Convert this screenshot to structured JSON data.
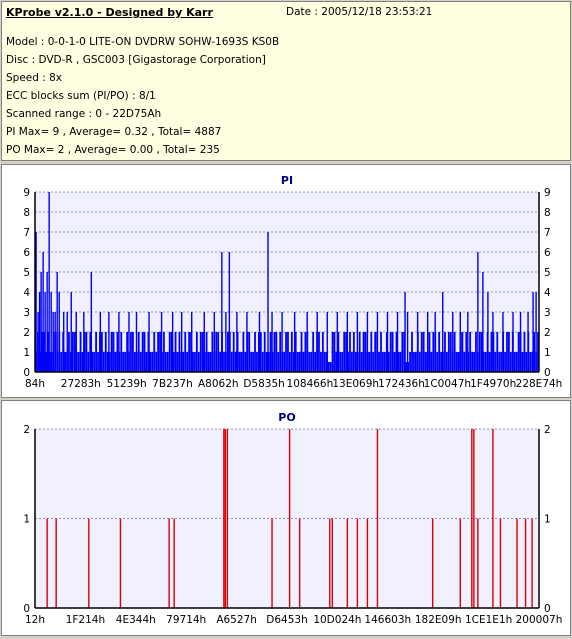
{
  "header": {
    "title": "KProbe v2.1.0 - Designed by Karr",
    "date": "Date : 2005/12/18 23:53:21",
    "lines": [
      "Model : 0-0-1-0 LITE-ON DVDRW SOHW-1693S KS0B",
      "Disc : DVD-R , GSC003 [Gigastorage Corporation]",
      "Speed : 8x",
      "ECC blocks sum (PI/PO) : 8/1",
      "Scanned range : 0 - 22D75Ah",
      "PI Max= 9 , Average= 0.32 , Total= 4887",
      "PO Max= 2 , Average= 0.00 , Total= 235"
    ]
  },
  "colors": {
    "pi": "#0000ff",
    "po": "#dd0000",
    "plot_bg": "#f0f0ff",
    "grid": "#9090c0"
  },
  "chart_data": [
    {
      "type": "bar",
      "title": "PI",
      "ylim": [
        0,
        9
      ],
      "yticks": [
        "0",
        "1",
        "2",
        "3",
        "4",
        "5",
        "6",
        "7",
        "8",
        "9"
      ],
      "xticks": [
        "84h",
        "27283h",
        "51239h",
        "7B237h",
        "A8062h",
        "D5835h",
        "108466h",
        "13E069h",
        "172436h",
        "1C0047h",
        "1F4970h",
        "228E74h"
      ],
      "grid": true,
      "series": [
        {
          "baseline_pattern": [
            1,
            2,
            1,
            2,
            2,
            1,
            2,
            1,
            1,
            2,
            2,
            1,
            2,
            1,
            2,
            1,
            1,
            2,
            1,
            2,
            2,
            1,
            1,
            2,
            1,
            2,
            2,
            1,
            2,
            1
          ],
          "spikes": [
            [
              0.0,
              7
            ],
            [
              0.004,
              3
            ],
            [
              0.007,
              4
            ],
            [
              0.01,
              5
            ],
            [
              0.014,
              6
            ],
            [
              0.018,
              4
            ],
            [
              0.022,
              5
            ],
            [
              0.026,
              9
            ],
            [
              0.03,
              4
            ],
            [
              0.034,
              3
            ],
            [
              0.038,
              3
            ],
            [
              0.042,
              5
            ],
            [
              0.046,
              4
            ],
            [
              0.055,
              3
            ],
            [
              0.062,
              3
            ],
            [
              0.07,
              4
            ],
            [
              0.08,
              3
            ],
            [
              0.095,
              3
            ],
            [
              0.11,
              5
            ],
            [
              0.128,
              3
            ],
            [
              0.145,
              3
            ],
            [
              0.165,
              3
            ],
            [
              0.185,
              3
            ],
            [
              0.2,
              3
            ],
            [
              0.225,
              3
            ],
            [
              0.25,
              3
            ],
            [
              0.272,
              3
            ],
            [
              0.29,
              3
            ],
            [
              0.31,
              3
            ],
            [
              0.335,
              3
            ],
            [
              0.355,
              3
            ],
            [
              0.37,
              6
            ],
            [
              0.378,
              3
            ],
            [
              0.385,
              6
            ],
            [
              0.4,
              3
            ],
            [
              0.42,
              3
            ],
            [
              0.445,
              3
            ],
            [
              0.462,
              7
            ],
            [
              0.47,
              3
            ],
            [
              0.49,
              3
            ],
            [
              0.515,
              3
            ],
            [
              0.54,
              3
            ],
            [
              0.56,
              3
            ],
            [
              0.58,
              3
            ],
            [
              0.6,
              3
            ],
            [
              0.62,
              3
            ],
            [
              0.64,
              3
            ],
            [
              0.66,
              3
            ],
            [
              0.68,
              3
            ],
            [
              0.7,
              3
            ],
            [
              0.72,
              3
            ],
            [
              0.735,
              4
            ],
            [
              0.74,
              3
            ],
            [
              0.76,
              3
            ],
            [
              0.78,
              3
            ],
            [
              0.795,
              3
            ],
            [
              0.81,
              4
            ],
            [
              0.83,
              3
            ],
            [
              0.845,
              3
            ],
            [
              0.86,
              3
            ],
            [
              0.88,
              6
            ],
            [
              0.89,
              5
            ],
            [
              0.9,
              4
            ],
            [
              0.91,
              3
            ],
            [
              0.93,
              3
            ],
            [
              0.95,
              3
            ],
            [
              0.965,
              3
            ],
            [
              0.98,
              3
            ],
            [
              0.99,
              4
            ],
            [
              0.996,
              4
            ]
          ],
          "gaps": [
            0.585,
            0.74
          ]
        }
      ]
    },
    {
      "type": "bar",
      "title": "PO",
      "ylim": [
        0,
        2
      ],
      "yticks": [
        "0",
        "1",
        "2"
      ],
      "xticks": [
        "12h",
        "1F214h",
        "4E344h",
        "79714h",
        "A6527h",
        "D6453h",
        "10D024h",
        "146603h",
        "182E09h",
        "1CE1E1h",
        "200007h"
      ],
      "grid": true,
      "series": [
        {
          "spikes": [
            [
              0.022,
              1
            ],
            [
              0.04,
              1
            ],
            [
              0.105,
              1
            ],
            [
              0.168,
              1
            ],
            [
              0.265,
              1
            ],
            [
              0.275,
              1
            ],
            [
              0.374,
              2
            ],
            [
              0.377,
              2
            ],
            [
              0.381,
              2
            ],
            [
              0.47,
              1
            ],
            [
              0.505,
              2
            ],
            [
              0.525,
              1
            ],
            [
              0.585,
              1
            ],
            [
              0.59,
              1
            ],
            [
              0.62,
              1
            ],
            [
              0.64,
              1
            ],
            [
              0.66,
              1
            ],
            [
              0.68,
              2
            ],
            [
              0.79,
              1
            ],
            [
              0.845,
              1
            ],
            [
              0.868,
              2
            ],
            [
              0.872,
              2
            ],
            [
              0.88,
              1
            ],
            [
              0.91,
              2
            ],
            [
              0.925,
              1
            ],
            [
              0.958,
              1
            ],
            [
              0.975,
              1
            ],
            [
              0.988,
              1
            ]
          ]
        }
      ]
    }
  ]
}
